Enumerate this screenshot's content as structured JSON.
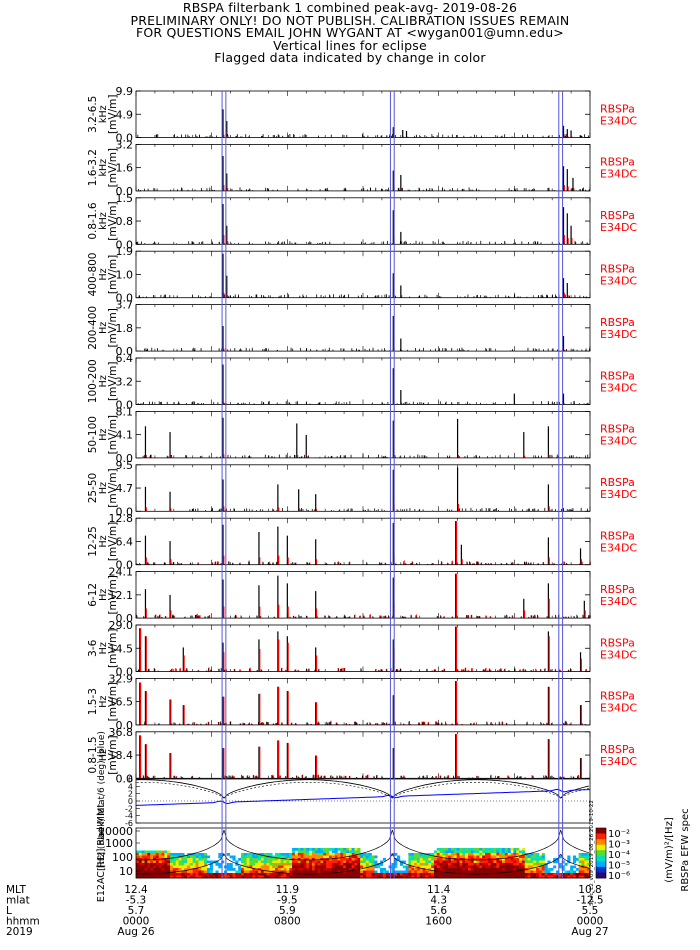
{
  "header": {
    "title": "RBSPA filterbank 1 combined peak-avg- 2019-08-26",
    "line2": "PRELIMINARY ONLY! DO NOT PUBLISH. CALIBRATION ISSUES REMAIN",
    "line3": "FOR QUESTIONS EMAIL JOHN WYGANT AT <wygan001@umn.edu>",
    "line4": "Vertical lines for eclipse",
    "line5": "Flagged data indicated by change in color"
  },
  "colors": {
    "peak": "#000000",
    "avg": "#ff0000",
    "eclipse": "#5555dd",
    "tag": "#ff0000",
    "trace": "#0000ff"
  },
  "chart_data": {
    "type": "bar",
    "x_axis": {
      "rows": [
        {
          "label": "MLT",
          "values": [
            "12.4",
            "11.9",
            "11.4",
            "10.8"
          ]
        },
        {
          "label": "mlat",
          "values": [
            "-5.3",
            "-9.5",
            "4.3",
            "-12.5"
          ]
        },
        {
          "label": "L",
          "values": [
            "5.7",
            "5.9",
            "5.6",
            "5.5"
          ]
        },
        {
          "label": "hhmm",
          "values": [
            "0000",
            "0800",
            "1600",
            "0000"
          ]
        },
        {
          "label": "2019",
          "values": [
            "Aug 26",
            "",
            "",
            "Aug 27"
          ]
        }
      ]
    },
    "eclipse_hours": [
      4.55,
      4.75,
      13.45,
      13.65,
      22.35,
      22.55
    ],
    "panels": [
      {
        "band": "3.2-6.5",
        "ylabel": "3.2-6.5 kHz [mV/m]",
        "ticks": [
          "9.9",
          "4.9",
          "0.0"
        ],
        "ymax": 9.9,
        "tag": [
          "RBSPa",
          "E34DC"
        ],
        "spikes": [
          [
            4.6,
            6.0,
            0.6
          ],
          [
            4.8,
            3.5,
            0.3
          ],
          [
            13.6,
            2.2,
            0.2
          ],
          [
            14.1,
            1.6,
            0.2
          ],
          [
            14.3,
            1.4,
            0.1
          ],
          [
            22.6,
            2.5,
            0.3
          ],
          [
            22.8,
            1.8,
            0.2
          ],
          [
            23.0,
            1.5,
            0.2
          ]
        ]
      },
      {
        "band": "1.6-3.2",
        "ylabel": "1.6-3.2 kHz [mV/m]",
        "ticks": [
          "3.2",
          "1.6",
          "0.0"
        ],
        "ymax": 3.2,
        "tag": [
          "RBSPa",
          "E34DC"
        ],
        "spikes": [
          [
            4.6,
            2.4,
            0.4
          ],
          [
            4.8,
            1.2,
            0.2
          ],
          [
            13.6,
            1.4,
            0.3
          ],
          [
            14.0,
            1.1,
            0.2
          ],
          [
            22.6,
            1.7,
            0.4
          ],
          [
            22.8,
            1.5,
            0.3
          ],
          [
            23.1,
            0.9,
            0.2
          ]
        ]
      },
      {
        "band": "0.8-1.6",
        "ylabel": "0.8-1.6 kHz [mV/m]",
        "ticks": [
          "1.5",
          "0.8",
          "0.0"
        ],
        "ymax": 1.5,
        "tag": [
          "RBSPa",
          "E34DC"
        ],
        "spikes": [
          [
            4.6,
            1.3,
            0.3
          ],
          [
            4.8,
            0.6,
            0.1
          ],
          [
            13.6,
            1.1,
            0.2
          ],
          [
            14.0,
            0.4,
            0.1
          ],
          [
            22.6,
            1.2,
            0.3
          ],
          [
            22.8,
            1.0,
            0.2
          ],
          [
            23.0,
            0.6,
            0.2
          ]
        ]
      },
      {
        "band": "400-800",
        "ylabel": "400-800 Hz [mV/m]",
        "ticks": [
          "1.9",
          "1.0",
          "0.0"
        ],
        "ymax": 1.9,
        "tag": [
          "RBSPa",
          "E34DC"
        ],
        "spikes": [
          [
            4.6,
            1.8,
            0.2
          ],
          [
            4.8,
            0.9,
            0.1
          ],
          [
            13.6,
            1.0,
            0.1
          ],
          [
            14.0,
            0.5,
            0.1
          ],
          [
            22.6,
            0.8,
            0.2
          ],
          [
            22.8,
            0.6,
            0.1
          ]
        ]
      },
      {
        "band": "200-400",
        "ylabel": "200-400 Hz [mV/m]",
        "ticks": [
          "3.7",
          "1.8",
          "0.0"
        ],
        "ymax": 3.7,
        "tag": [
          "RBSPa",
          "E34DC"
        ],
        "spikes": [
          [
            4.6,
            2.0,
            0.2
          ],
          [
            13.6,
            2.8,
            0.2
          ],
          [
            14.0,
            1.0,
            0.1
          ],
          [
            22.6,
            1.2,
            0.1
          ]
        ]
      },
      {
        "band": "100-200",
        "ylabel": "100-200 Hz [mV/m]",
        "ticks": [
          "6.4",
          "3.2",
          "0.0"
        ],
        "ymax": 6.4,
        "tag": [
          "RBSPa",
          "E34DC"
        ],
        "spikes": [
          [
            4.6,
            5.5,
            0.3
          ],
          [
            13.6,
            5.0,
            0.3
          ],
          [
            14.0,
            2.0,
            0.2
          ],
          [
            20.0,
            1.5,
            0.1
          ],
          [
            22.6,
            1.5,
            0.1
          ]
        ]
      },
      {
        "band": "50-100",
        "ylabel": "50-100 Hz [mV/m]",
        "ticks": [
          "8.1",
          "4.1",
          "0.0"
        ],
        "ymax": 8.1,
        "tag": [
          "RBSPa",
          "E34DC"
        ],
        "spikes": [
          [
            0.5,
            5.5,
            0.5
          ],
          [
            1.8,
            4.5,
            0.4
          ],
          [
            4.6,
            7.0,
            0.6
          ],
          [
            8.5,
            6.0,
            0.5
          ],
          [
            9.0,
            4.0,
            0.3
          ],
          [
            13.6,
            6.5,
            0.5
          ],
          [
            17.0,
            6.8,
            0.5
          ],
          [
            20.5,
            4.5,
            0.4
          ],
          [
            21.8,
            5.5,
            0.5
          ]
        ]
      },
      {
        "band": "25-50",
        "ylabel": "25-50 Hz [mV/m]",
        "ticks": [
          "9.5",
          "4.7",
          "0.0"
        ],
        "ymax": 9.5,
        "tag": [
          "RBSPa",
          "E34DC"
        ],
        "spikes": [
          [
            0.5,
            5.0,
            0.8
          ],
          [
            1.8,
            4.0,
            0.6
          ],
          [
            4.6,
            6.5,
            1.0
          ],
          [
            7.5,
            5.5,
            0.8
          ],
          [
            8.6,
            4.5,
            0.6
          ],
          [
            9.5,
            3.5,
            0.5
          ],
          [
            13.6,
            8.5,
            1.5
          ],
          [
            17.0,
            9.0,
            1.5
          ],
          [
            21.8,
            5.5,
            1.0
          ]
        ]
      },
      {
        "band": "12-25",
        "ylabel": "12-25 Hz [mV/m]",
        "ticks": [
          "12.8",
          "6.4",
          "0.0"
        ],
        "ymax": 12.8,
        "tag": [
          "RBSPa",
          "E34DC"
        ],
        "spikes": [
          [
            0.5,
            8.0,
            2.0
          ],
          [
            1.8,
            6.5,
            1.5
          ],
          [
            4.6,
            11.0,
            2.5
          ],
          [
            6.5,
            9.0,
            2.0
          ],
          [
            7.5,
            10.5,
            2.5
          ],
          [
            8.0,
            8.0,
            2.0
          ],
          [
            9.5,
            7.0,
            1.5
          ],
          [
            13.6,
            11.5,
            2.5
          ],
          [
            16.9,
            12.0,
            12.0
          ],
          [
            17.2,
            5.5,
            1.5
          ],
          [
            21.8,
            7.5,
            2.0
          ],
          [
            23.5,
            4.5,
            1.5
          ]
        ]
      },
      {
        "band": "6-12",
        "ylabel": "6-12 Hz [mV/m]",
        "ticks": [
          "24.1",
          "12.1",
          "0.0"
        ],
        "ymax": 24.1,
        "tag": [
          "RBSPa",
          "E34DC"
        ],
        "spikes": [
          [
            0.5,
            15.0,
            5.0
          ],
          [
            1.8,
            12.0,
            4.0
          ],
          [
            4.6,
            20.0,
            6.0
          ],
          [
            6.5,
            17.0,
            6.0
          ],
          [
            7.5,
            22.0,
            7.0
          ],
          [
            8.0,
            18.0,
            6.0
          ],
          [
            9.5,
            14.0,
            5.0
          ],
          [
            13.6,
            21.0,
            8.0
          ],
          [
            16.9,
            23.0,
            23.0
          ],
          [
            20.5,
            10.0,
            4.0
          ],
          [
            21.8,
            18.0,
            10.0
          ],
          [
            23.7,
            9.0,
            4.0
          ]
        ]
      },
      {
        "band": "3-6",
        "ylabel": "3-6 Hz [mV/m]",
        "ticks": [
          "29.0",
          "14.5",
          "0.0"
        ],
        "ymax": 29.0,
        "tag": [
          "RBSPa",
          "E34DC"
        ],
        "spikes": [
          [
            0.2,
            27.0,
            27.0
          ],
          [
            0.5,
            22.0,
            22.0
          ],
          [
            2.5,
            15.0,
            10.0
          ],
          [
            4.6,
            18.0,
            12.0
          ],
          [
            6.5,
            20.0,
            14.0
          ],
          [
            7.5,
            25.0,
            20.0
          ],
          [
            8.0,
            22.0,
            18.0
          ],
          [
            9.5,
            15.0,
            10.0
          ],
          [
            13.6,
            20.0,
            14.0
          ],
          [
            16.9,
            28.0,
            28.0
          ],
          [
            21.8,
            25.0,
            22.0
          ],
          [
            23.5,
            12.0,
            8.0
          ]
        ]
      },
      {
        "band": "1.5-3",
        "ylabel": "1.5-3 Hz [mV/m]",
        "ticks": [
          "32.9",
          "16.5",
          "0.0"
        ],
        "ymax": 32.9,
        "tag": [
          "RBSPa",
          "E34DC"
        ],
        "spikes": [
          [
            0.2,
            30.0,
            30.0
          ],
          [
            0.5,
            24.0,
            24.0
          ],
          [
            1.8,
            18.0,
            18.0
          ],
          [
            2.5,
            14.0,
            14.0
          ],
          [
            4.6,
            20.0,
            20.0
          ],
          [
            6.5,
            22.0,
            22.0
          ],
          [
            7.5,
            27.0,
            27.0
          ],
          [
            8.0,
            24.0,
            24.0
          ],
          [
            9.5,
            16.0,
            16.0
          ],
          [
            13.6,
            21.0,
            21.0
          ],
          [
            16.9,
            31.0,
            31.0
          ],
          [
            21.8,
            27.0,
            27.0
          ],
          [
            23.5,
            14.0,
            14.0
          ]
        ]
      },
      {
        "band": "0.8-1.5",
        "ylabel": "0.8-1.5 Hz [mV/m]",
        "ticks": [
          "36.8",
          "18.4",
          "0.0"
        ],
        "ymax": 36.8,
        "tag": [
          "RBSPa",
          "E34DC"
        ],
        "spikes": [
          [
            0.2,
            34.0,
            34.0
          ],
          [
            0.5,
            27.0,
            27.0
          ],
          [
            1.8,
            20.0,
            20.0
          ],
          [
            4.6,
            24.0,
            24.0
          ],
          [
            6.5,
            25.0,
            25.0
          ],
          [
            7.5,
            30.0,
            30.0
          ],
          [
            8.0,
            28.0,
            28.0
          ],
          [
            9.5,
            18.0,
            18.0
          ],
          [
            13.6,
            24.0,
            24.0
          ],
          [
            16.9,
            35.0,
            35.0
          ],
          [
            21.8,
            31.0,
            31.0
          ],
          [
            23.5,
            16.0,
            16.0
          ]
        ]
      }
    ],
    "position_panel": {
      "ylabel": "[RE] (black) Mlat/6 (deg) (blue)",
      "ticks": [
        "6",
        "4",
        "2",
        "0",
        "-2",
        "-4",
        "-6"
      ],
      "ymin": -6.0,
      "ymax": 6.0
    },
    "spectrogram_panel": {
      "ylabel": "E12AC [Hz] Rad Mlat",
      "ticks": [
        "10000",
        "1000",
        "100",
        "10"
      ],
      "colorbar_ticks": [
        "10⁻²",
        "10⁻³",
        "10⁻⁴",
        "10⁻⁵",
        "10⁻⁶"
      ],
      "colorbar_label": "RBSPa EFW spec",
      "units_label": "(mV/m)²/[Hz]",
      "version_label": "Spec_L2_v09_2019_08_26 2019-10-22"
    }
  }
}
